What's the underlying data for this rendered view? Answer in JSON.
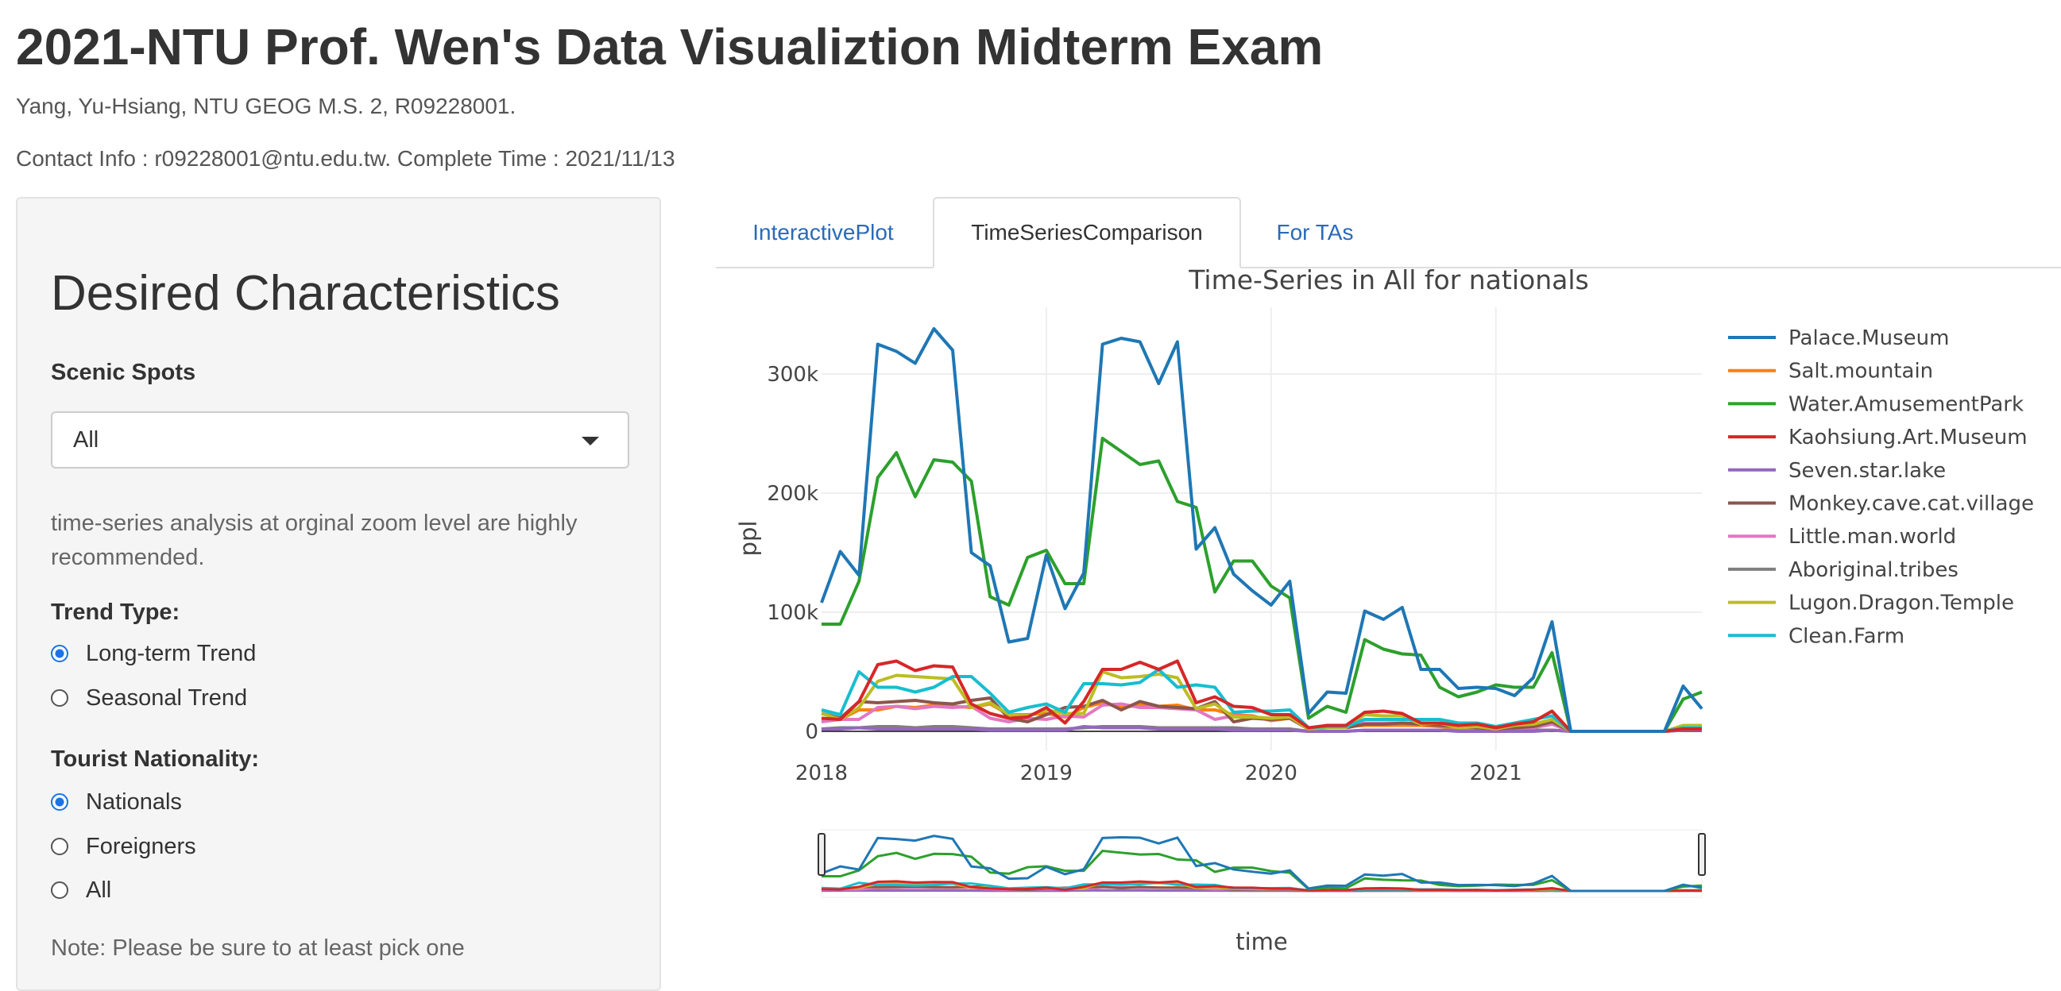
{
  "header": {
    "title": "2021-NTU Prof. Wen's Data Visualiztion Midterm Exam",
    "subtitle": "Yang, Yu-Hsiang, NTU GEOG M.S. 2, R09228001.",
    "contact": "Contact Info : r09228001@ntu.edu.tw. Complete Time : 2021/11/13"
  },
  "sidebar": {
    "title": "Desired Characteristics",
    "scenic_label": "Scenic Spots",
    "scenic_value": "All",
    "help_line1": "time-series analysis at orginal zoom level are highly",
    "help_line2": "recommended.",
    "trend_label": "Trend Type:",
    "trend_options": [
      {
        "label": "Long-term Trend",
        "selected": true
      },
      {
        "label": "Seasonal Trend",
        "selected": false
      }
    ],
    "nationality_label": "Tourist Nationality:",
    "nationality_options": [
      {
        "label": "Nationals",
        "selected": true
      },
      {
        "label": "Foreigners",
        "selected": false
      },
      {
        "label": "All",
        "selected": false
      }
    ],
    "note": "Note: Please be sure to at least pick one"
  },
  "tabs": [
    {
      "label": "InteractivePlot",
      "active": false
    },
    {
      "label": "TimeSeriesComparison",
      "active": true
    },
    {
      "label": "For TAs",
      "active": false
    }
  ],
  "chart_data": {
    "type": "line",
    "title": "Time-Series in All for nationals",
    "xlabel": "time",
    "ylabel": "ppl",
    "x_start": "2018-01",
    "x_frequency": "monthly",
    "x_ticks": [
      "2018",
      "2019",
      "2020",
      "2021"
    ],
    "y_ticks": [
      "0",
      "100k",
      "200k",
      "300k"
    ],
    "ylim": [
      -16000,
      356000
    ],
    "grid": true,
    "legend": "right",
    "rangeslider": true,
    "series": [
      {
        "name": "Palace.Museum",
        "color": "#1f77b4",
        "values": [
          108,
          151,
          131,
          325,
          319,
          309,
          338,
          320,
          150,
          139,
          75,
          78,
          148,
          103,
          133,
          325,
          330,
          327,
          292,
          327,
          153,
          171,
          132,
          118,
          106,
          126,
          15,
          33,
          32,
          101,
          94,
          104,
          52,
          52,
          36,
          37,
          36,
          30,
          45,
          92,
          0,
          0,
          0,
          0,
          0,
          0,
          38,
          19
        ]
      },
      {
        "name": "Salt.mountain",
        "color": "#ff7f0e",
        "values": [
          10,
          10,
          18,
          18,
          21,
          20,
          22,
          21,
          20,
          23,
          14,
          14,
          15,
          12,
          20,
          24,
          20,
          22,
          21,
          22,
          18,
          18,
          14,
          13,
          9,
          11,
          2,
          5,
          4,
          5,
          5,
          5,
          5,
          4,
          3,
          3,
          3,
          3,
          5,
          7,
          0,
          0,
          0,
          0,
          0,
          0,
          3,
          3
        ]
      },
      {
        "name": "Water.AmusementPark",
        "color": "#2ca02c",
        "values": [
          90,
          90,
          126,
          213,
          234,
          197,
          228,
          226,
          210,
          113,
          106,
          146,
          152,
          124,
          124,
          246,
          235,
          224,
          227,
          193,
          188,
          117,
          143,
          143,
          122,
          112,
          11,
          21,
          16,
          77,
          69,
          65,
          64,
          37,
          29,
          33,
          39,
          37,
          37,
          66,
          0,
          0,
          0,
          0,
          0,
          0,
          27,
          33
        ]
      },
      {
        "name": "Kaohsiung.Art.Museum",
        "color": "#d62728",
        "values": [
          11,
          10,
          25,
          56,
          59,
          51,
          55,
          54,
          23,
          15,
          11,
          12,
          20,
          7,
          25,
          52,
          52,
          58,
          52,
          59,
          24,
          29,
          21,
          20,
          14,
          14,
          3,
          5,
          5,
          16,
          17,
          15,
          7,
          7,
          5,
          6,
          3,
          6,
          8,
          17,
          0,
          0,
          0,
          0,
          0,
          0,
          2,
          2
        ]
      },
      {
        "name": "Seven.star.lake",
        "color": "#9467bd",
        "values": [
          2,
          2,
          3,
          2,
          2,
          2,
          2,
          2,
          2,
          1,
          1,
          1,
          1,
          1,
          4,
          3,
          3,
          3,
          2,
          2,
          2,
          2,
          1,
          1,
          1,
          1,
          0,
          0,
          0,
          1,
          1,
          1,
          1,
          1,
          0,
          0,
          0,
          0,
          0,
          1,
          0,
          0,
          0,
          0,
          0,
          0,
          1,
          1
        ]
      },
      {
        "name": "Monkey.cave.cat.village",
        "color": "#8c564b",
        "values": [
          15,
          11,
          25,
          24,
          25,
          26,
          24,
          23,
          26,
          28,
          11,
          8,
          14,
          20,
          21,
          26,
          18,
          25,
          21,
          20,
          19,
          25,
          8,
          11,
          10,
          11,
          2,
          3,
          3,
          6,
          6,
          7,
          6,
          5,
          4,
          3,
          2,
          3,
          4,
          8,
          0,
          0,
          0,
          0,
          0,
          0,
          3,
          2
        ]
      },
      {
        "name": "Little.man.world",
        "color": "#e377c2",
        "values": [
          8,
          10,
          10,
          20,
          21,
          19,
          21,
          20,
          21,
          11,
          8,
          11,
          10,
          13,
          12,
          22,
          23,
          20,
          20,
          19,
          18,
          10,
          13,
          12,
          11,
          12,
          3,
          3,
          3,
          7,
          7,
          7,
          7,
          5,
          3,
          3,
          2,
          3,
          3,
          6,
          0,
          0,
          0,
          0,
          0,
          0,
          3,
          3
        ]
      },
      {
        "name": "Aboriginal.tribes",
        "color": "#7f7f7f",
        "values": [
          2,
          3,
          3,
          4,
          4,
          3,
          4,
          4,
          3,
          2,
          2,
          2,
          2,
          2,
          3,
          4,
          4,
          4,
          3,
          3,
          3,
          3,
          3,
          2,
          2,
          2,
          0,
          0,
          0,
          1,
          1,
          1,
          1,
          1,
          1,
          1,
          1,
          1,
          1,
          1,
          0,
          0,
          0,
          0,
          0,
          0,
          1,
          1
        ]
      },
      {
        "name": "Lugon.Dragon.Temple",
        "color": "#bcbd22",
        "values": [
          15,
          10,
          20,
          42,
          47,
          46,
          45,
          44,
          20,
          24,
          14,
          13,
          18,
          15,
          15,
          50,
          45,
          46,
          48,
          45,
          19,
          23,
          12,
          12,
          11,
          12,
          2,
          3,
          3,
          14,
          13,
          13,
          6,
          7,
          3,
          4,
          2,
          5,
          6,
          10,
          0,
          0,
          0,
          0,
          0,
          0,
          5,
          5
        ]
      },
      {
        "name": "Clean.Farm",
        "color": "#17becf",
        "values": [
          18,
          14,
          50,
          37,
          37,
          33,
          37,
          46,
          46,
          32,
          16,
          20,
          23,
          16,
          40,
          40,
          39,
          41,
          52,
          37,
          39,
          37,
          16,
          17,
          17,
          18,
          3,
          4,
          4,
          10,
          10,
          10,
          10,
          10,
          7,
          7,
          4,
          7,
          10,
          13,
          0,
          0,
          0,
          0,
          0,
          0,
          3,
          3
        ]
      }
    ],
    "value_unit": "thousand ppl"
  }
}
